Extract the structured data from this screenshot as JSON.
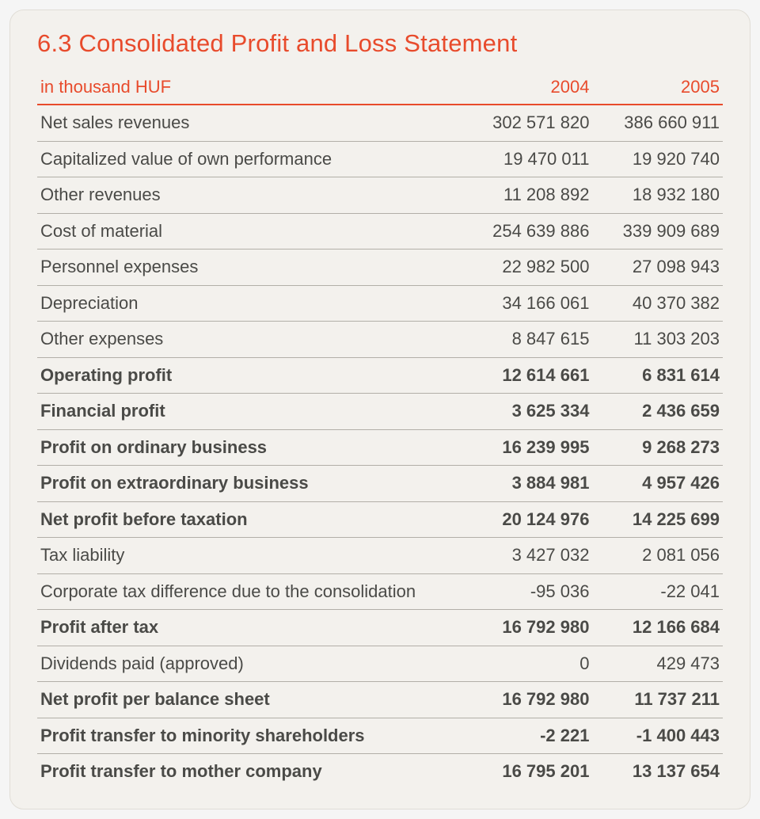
{
  "title": "6.3 Consolidated Profit and Loss Statement",
  "header": {
    "label": "in  thousand HUF",
    "col1": "2004",
    "col2": "2005"
  },
  "rows": [
    {
      "label": "Net sales revenues",
      "v1": "302 571 820",
      "v2": "386 660 911",
      "bold": false
    },
    {
      "label": "Capitalized value of own performance",
      "v1": "19 470 011",
      "v2": "19 920 740",
      "bold": false
    },
    {
      "label": "Other revenues",
      "v1": "11 208 892",
      "v2": "18 932 180",
      "bold": false
    },
    {
      "label": "Cost of material",
      "v1": "254 639 886",
      "v2": "339 909 689",
      "bold": false
    },
    {
      "label": "Personnel expenses",
      "v1": "22 982 500",
      "v2": "27 098 943",
      "bold": false
    },
    {
      "label": "Depreciation",
      "v1": "34 166 061",
      "v2": "40 370 382",
      "bold": false
    },
    {
      "label": "Other expenses",
      "v1": "8 847 615",
      "v2": "11 303 203",
      "bold": false
    },
    {
      "label": "Operating profit",
      "v1": "12 614 661",
      "v2": "6 831 614",
      "bold": true
    },
    {
      "label": "Financial profit",
      "v1": "3 625 334",
      "v2": "2 436 659",
      "bold": true
    },
    {
      "label": "Profit on ordinary business",
      "v1": "16 239 995",
      "v2": "9 268 273",
      "bold": true
    },
    {
      "label": "Profit on extraordinary business",
      "v1": "3 884 981",
      "v2": "4 957 426",
      "bold": true
    },
    {
      "label": "Net profit before taxation",
      "v1": "20 124 976",
      "v2": "14 225 699",
      "bold": true
    },
    {
      "label": "Tax liability",
      "v1": "3 427 032",
      "v2": "2 081 056",
      "bold": false
    },
    {
      "label": "Corporate tax difference due to the consolidation",
      "v1": "-95 036",
      "v2": "-22 041",
      "bold": false
    },
    {
      "label": "Profit after tax",
      "v1": "16 792 980",
      "v2": "12 166 684",
      "bold": true
    },
    {
      "label": "Dividends paid (approved)",
      "v1": "0",
      "v2": "429 473",
      "bold": false
    },
    {
      "label": "Net profit per balance sheet",
      "v1": "16 792 980",
      "v2": "11 737 211",
      "bold": true
    },
    {
      "label": "Profit transfer to minority shareholders",
      "v1": "-2 221",
      "v2": "-1 400 443",
      "bold": true
    },
    {
      "label": "Profit transfer to mother company",
      "v1": "16 795 201",
      "v2": "13 137 654",
      "bold": true
    }
  ],
  "style": {
    "accent_color": "#e84b2c",
    "text_color": "#4a4a47",
    "panel_bg": "#f3f1ed",
    "panel_border": "#e0ddd6",
    "row_border": "#b2afa8",
    "title_fontsize": 31,
    "header_fontsize": 22,
    "cell_fontsize": 22,
    "panel_radius": 18
  }
}
